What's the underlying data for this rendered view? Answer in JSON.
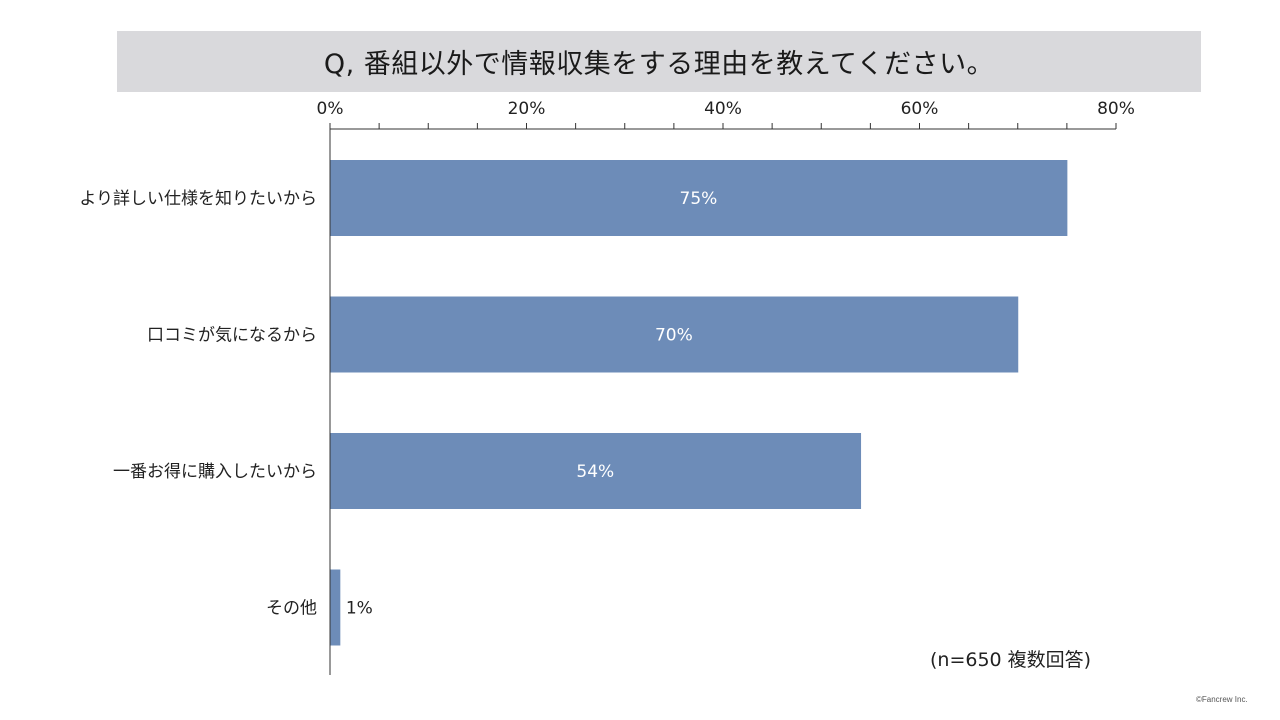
{
  "header": {
    "title": "Q, 番組以外で情報収集をする理由を教えてください。"
  },
  "note": "(n=650 複数回答)",
  "copyright": "©Fancrew Inc.",
  "colors": {
    "bar": "#6d8cb8",
    "title_background": "#d9d9dc",
    "axis": "#333333"
  },
  "chart_data": {
    "type": "bar",
    "orientation": "horizontal",
    "categories": [
      "より詳しい仕様を知りたいから",
      "口コミが気になるから",
      "一番お得に購入したいから",
      "その他"
    ],
    "values": [
      75,
      70,
      54,
      1
    ],
    "value_labels": [
      "75%",
      "70%",
      "54%",
      "1%"
    ],
    "xlim": [
      0,
      80
    ],
    "xticks": [
      0,
      20,
      40,
      60,
      80
    ],
    "xtick_labels": [
      "0%",
      "20%",
      "40%",
      "60%",
      "80%"
    ],
    "minor_tick_step": 5,
    "axis_position": "top",
    "grid": false,
    "legend": "none"
  }
}
